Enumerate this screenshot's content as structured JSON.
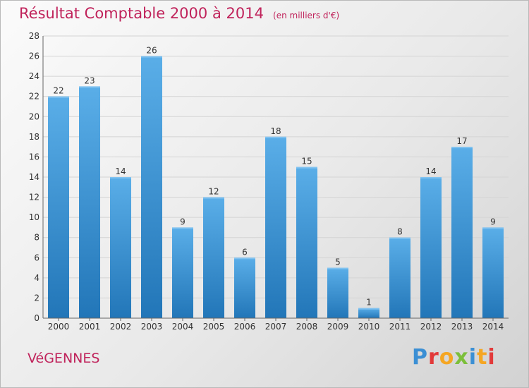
{
  "chart_data": {
    "type": "bar",
    "title": "Résultat Comptable 2000 à 2014",
    "unit_note": "(en milliers d'€)",
    "xlabel": "",
    "ylabel": "",
    "ylim": [
      0,
      28
    ],
    "yticks": [
      0,
      2,
      4,
      6,
      8,
      10,
      12,
      14,
      16,
      18,
      20,
      22,
      24,
      26,
      28
    ],
    "grid": true,
    "categories": [
      "2000",
      "2001",
      "2002",
      "2003",
      "2004",
      "2005",
      "2006",
      "2007",
      "2008",
      "2009",
      "2010",
      "2011",
      "2012",
      "2013",
      "2014"
    ],
    "values": [
      22,
      23,
      14,
      26,
      9,
      12,
      6,
      18,
      15,
      5,
      1,
      8,
      14,
      17,
      9
    ],
    "colors": {
      "bar_light": "#5aaee8",
      "bar_dark": "#2276b8",
      "title": "#c0235b"
    }
  },
  "footer": {
    "town": "VéGENNES",
    "logo_letters": [
      {
        "ch": "P",
        "color": "#3b8fd4"
      },
      {
        "ch": "r",
        "color": "#e23a3a"
      },
      {
        "ch": "o",
        "color": "#f5a623"
      },
      {
        "ch": "x",
        "color": "#7cbf3a"
      },
      {
        "ch": "i",
        "color": "#3b8fd4"
      },
      {
        "ch": "t",
        "color": "#f5a623"
      },
      {
        "ch": "i",
        "color": "#e23a3a"
      }
    ]
  }
}
